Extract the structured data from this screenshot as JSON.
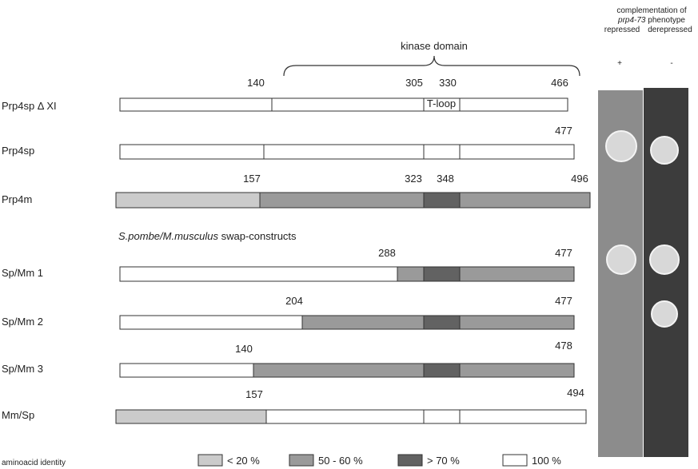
{
  "header": {
    "line1": "complementation of",
    "line2_italic": "prp4-73",
    "line2_rest": "phenotype",
    "col1": "repressed",
    "col2": "derepressed",
    "sign1": "+",
    "sign2": "-"
  },
  "kinase_label": "kinase domain",
  "section_title": {
    "italic": "S.pombe/M.musculus",
    "rest": "swap-constructs"
  },
  "constructs": [
    {
      "name": "Prp4sp Δ XI",
      "labels": [
        "140",
        "305",
        "330",
        "466"
      ],
      "tloop": "T-loop"
    },
    {
      "name": "Prp4sp",
      "labels": [
        "477"
      ]
    },
    {
      "name": "Prp4m",
      "labels": [
        "157",
        "323",
        "348",
        "496"
      ]
    },
    {
      "name": "Sp/Mm 1",
      "labels": [
        "288",
        "477"
      ]
    },
    {
      "name": "Sp/Mm 2",
      "labels": [
        "204",
        "477"
      ]
    },
    {
      "name": "Sp/Mm 3",
      "labels": [
        "140",
        "478"
      ]
    },
    {
      "name": "Mm/Sp",
      "labels": [
        "157",
        "494"
      ]
    }
  ],
  "legend": {
    "title": "aminoacid identity",
    "items": [
      "< 20 %",
      "50 - 60 %",
      "> 70 %",
      "100 %"
    ]
  }
}
